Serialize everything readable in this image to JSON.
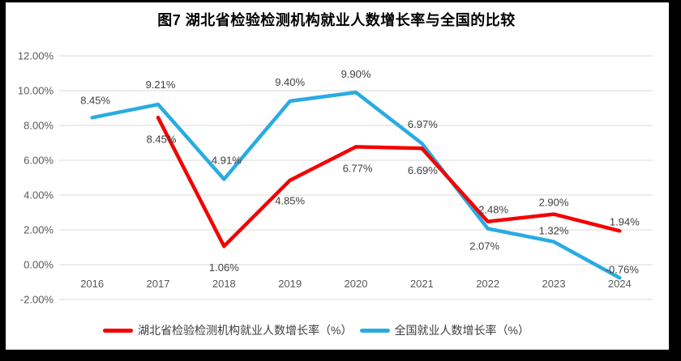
{
  "chart_data": {
    "type": "line",
    "title": "图7 湖北省检验检测机构就业人数增长率与全国的比较",
    "xlabel": "",
    "ylabel": "",
    "categories": [
      "2016",
      "2017",
      "2018",
      "2019",
      "2020",
      "2021",
      "2022",
      "2023",
      "2024"
    ],
    "series": [
      {
        "key": "hubei",
        "name": "湖北省检验检测机构就业人数增长率（%）",
        "color": "#F40000",
        "values": [
          null,
          8.45,
          1.06,
          4.85,
          6.77,
          6.69,
          2.48,
          2.9,
          1.94
        ],
        "labels": [
          null,
          "8.45%",
          "1.06%",
          "4.85%",
          "6.77%",
          "6.69%",
          "2.48%",
          "2.90%",
          "1.94%"
        ],
        "label_offsets": [
          null,
          [
            4,
            31
          ],
          [
            0,
            31
          ],
          [
            0,
            30
          ],
          [
            2,
            31
          ],
          [
            1,
            32
          ],
          [
            7,
            -10
          ],
          [
            0,
            -10
          ],
          [
            6,
            -7
          ]
        ]
      },
      {
        "key": "national",
        "name": "全国就业人数增长率（%）",
        "color": "#29ABE2",
        "values": [
          8.45,
          9.21,
          4.91,
          9.4,
          9.9,
          6.97,
          2.07,
          1.32,
          -0.76
        ],
        "labels": [
          "8.45%",
          "9.21%",
          "4.91%",
          "9.40%",
          "9.90%",
          "6.97%",
          "2.07%",
          "1.32%",
          "-0.76%"
        ],
        "label_offsets": [
          [
            4,
            -17
          ],
          [
            3,
            -20
          ],
          [
            3,
            -19
          ],
          [
            0,
            -19
          ],
          [
            0,
            -18
          ],
          [
            1,
            -19
          ],
          [
            -4,
            26
          ],
          [
            0,
            -9
          ],
          [
            3,
            -6
          ]
        ]
      }
    ],
    "y_ticks": [
      {
        "label": "12.00%",
        "value": 12
      },
      {
        "label": "10.00%",
        "value": 10
      },
      {
        "label": "8.00%",
        "value": 8
      },
      {
        "label": "6.00%",
        "value": 6
      },
      {
        "label": "4.00%",
        "value": 4
      },
      {
        "label": "2.00%",
        "value": 2
      },
      {
        "label": "0.00%",
        "value": 0
      },
      {
        "label": "-2.00%",
        "value": -2
      }
    ],
    "ylim": [
      -2,
      12
    ],
    "grid": true,
    "legend_position": "bottom",
    "colors": {
      "gridline": "#D9D9D9",
      "tick_label": "#595959",
      "data_label": "#3F3F3F",
      "frame": "#000000"
    }
  }
}
